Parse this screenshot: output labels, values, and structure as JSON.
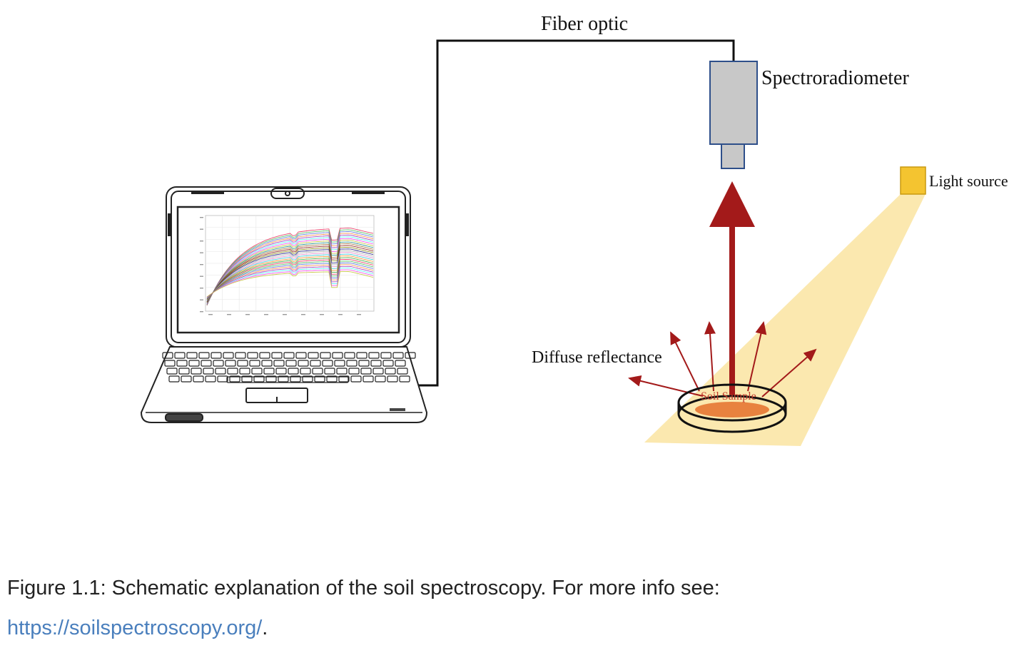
{
  "diagram": {
    "labels": {
      "fiber_optic": "Fiber optic",
      "spectroradiometer": "Spectroradiometer",
      "light_source": "Light source",
      "diffuse_reflectance": "Diffuse reflectance",
      "soil_sample": "Soil Sample"
    },
    "colors": {
      "light_beam": "#fbe6a6",
      "light_source": "#f4c430",
      "reflect_arrow": "#a31a1a",
      "instrument_body": "#c8c8c8",
      "instrument_border": "#2e4f8a",
      "soil": "#e8823f"
    }
  },
  "caption": {
    "text": "Figure 1.1: Schematic explanation of the soil spectroscopy. For more info see:",
    "link_text": "https://soilspectroscopy.org/",
    "trailing": "."
  }
}
